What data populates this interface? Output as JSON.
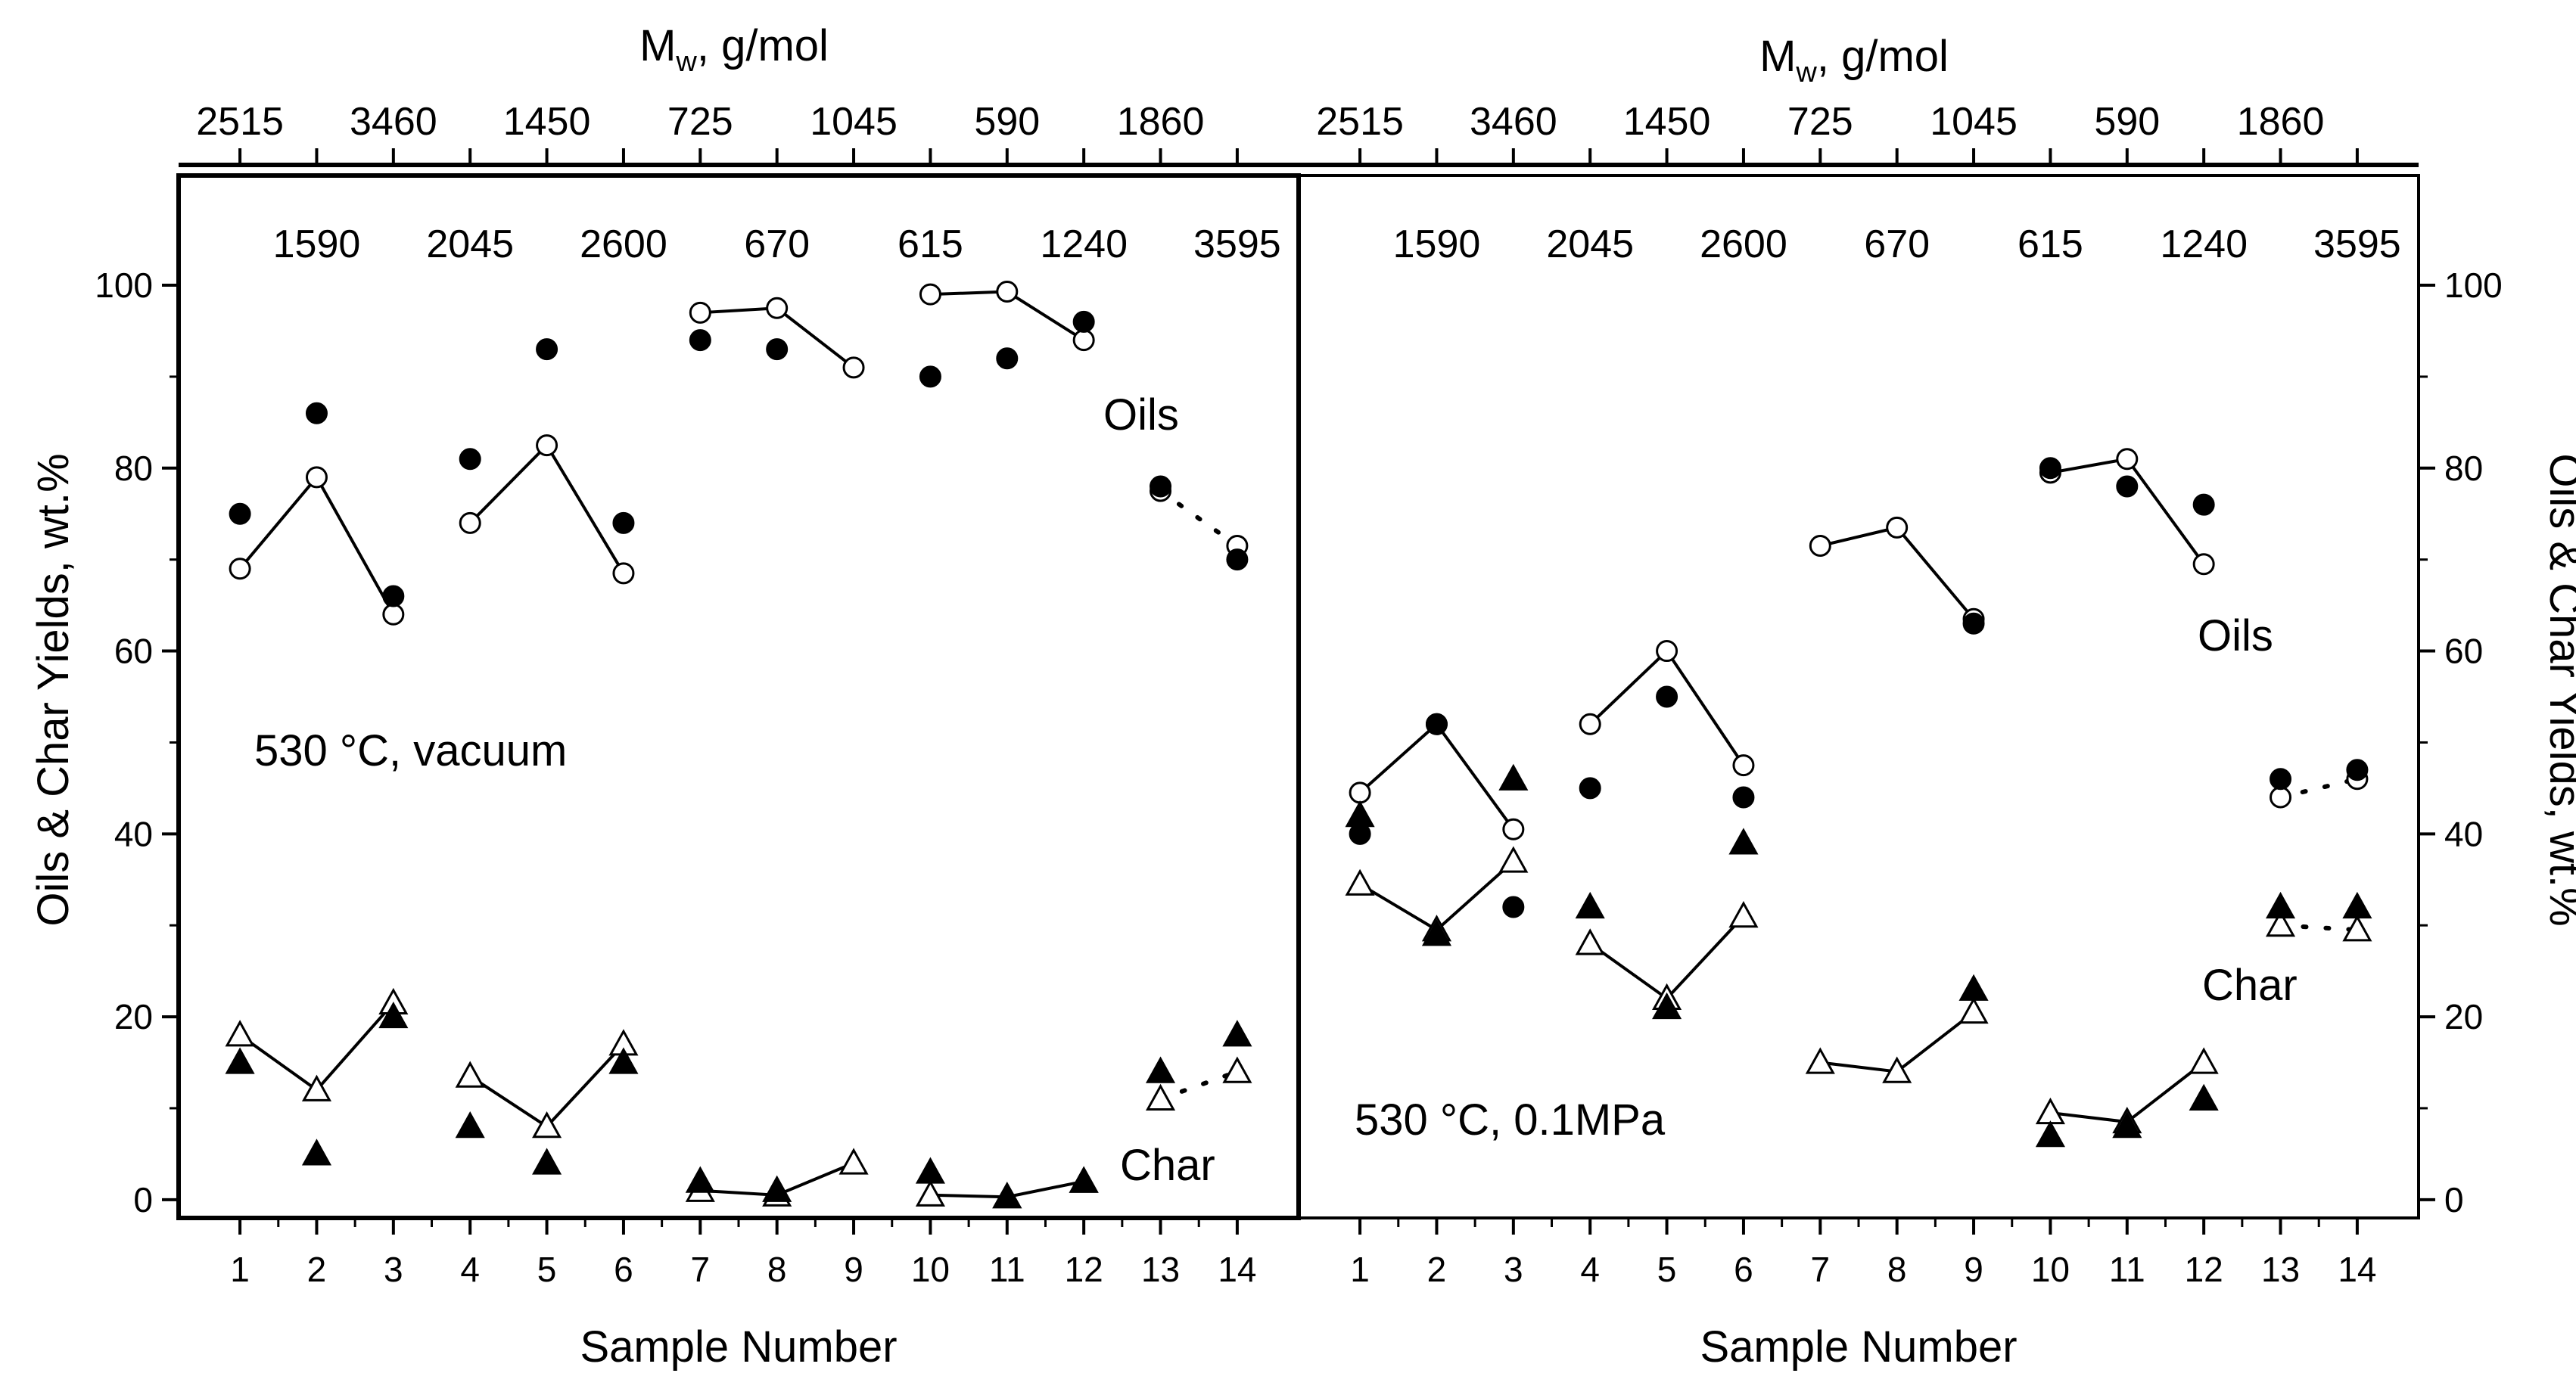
{
  "chart_data": [
    {
      "type": "scatter",
      "panel": "left",
      "condition_label": "530 °C, vacuum",
      "xlabel": "Sample Number",
      "ylabel": "Oils & Char Yields, wt.%",
      "top_axis_title": "M",
      "top_axis_sub": "w",
      "top_axis_unit": ", g/mol",
      "x_ticks": [
        1,
        2,
        3,
        4,
        5,
        6,
        7,
        8,
        9,
        10,
        11,
        12,
        13,
        14
      ],
      "y_ticks": [
        0,
        20,
        40,
        60,
        80,
        100
      ],
      "xlim": [
        0.2,
        14.8
      ],
      "ylim": [
        -2,
        112
      ],
      "mw_upper": [
        "2515",
        "3460",
        "1450",
        "725",
        "1045",
        "590",
        "1860"
      ],
      "mw_lower": [
        "1590",
        "2045",
        "2600",
        "670",
        "615",
        "1240",
        "3595"
      ],
      "annotations": {
        "oils": "Oils",
        "char": "Char"
      },
      "series": [
        {
          "name": "Oils (solid)",
          "marker": "filled-circle",
          "x": [
            1,
            2,
            3,
            4,
            5,
            6,
            7,
            8,
            10,
            11,
            12,
            13,
            14
          ],
          "y": [
            75,
            86,
            66,
            81,
            93,
            74,
            94,
            93,
            90,
            92,
            96,
            78,
            70
          ]
        },
        {
          "name": "Oils (open)",
          "marker": "open-circle",
          "x": [
            1,
            2,
            3,
            4,
            5,
            6,
            7,
            8,
            9,
            10,
            11,
            12,
            13,
            14
          ],
          "y": [
            69,
            79,
            64,
            74,
            82.5,
            68.5,
            97,
            97.5,
            91,
            99,
            99.3,
            94,
            77.5,
            71.5
          ],
          "lines": [
            [
              1,
              2,
              3
            ],
            [
              4,
              5,
              6
            ],
            [
              7,
              8,
              9
            ],
            [
              10,
              11,
              12
            ]
          ],
          "dotted": [
            [
              13,
              14
            ]
          ]
        },
        {
          "name": "Char (solid)",
          "marker": "filled-triangle",
          "x": [
            1,
            2,
            3,
            4,
            5,
            6,
            7,
            8,
            10,
            11,
            12,
            13,
            14
          ],
          "y": [
            15,
            5,
            20,
            8,
            4,
            15,
            2,
            1,
            3,
            0.3,
            2,
            14,
            18
          ]
        },
        {
          "name": "Char (open)",
          "marker": "open-triangle",
          "x": [
            1,
            2,
            3,
            4,
            5,
            6,
            7,
            8,
            9,
            10,
            11,
            12,
            13,
            14
          ],
          "y": [
            18,
            12,
            21.5,
            13.5,
            8,
            17,
            1,
            0.5,
            4,
            0.5,
            0.3,
            2,
            11,
            14
          ],
          "lines": [
            [
              1,
              2,
              3
            ],
            [
              4,
              5,
              6
            ],
            [
              7,
              8,
              9
            ],
            [
              10,
              11,
              12
            ]
          ],
          "dotted": [
            [
              13,
              14
            ]
          ]
        }
      ]
    },
    {
      "type": "scatter",
      "panel": "right",
      "condition_label": "530 °C, 0.1MPa",
      "xlabel": "Sample Number",
      "ylabel": "Oils & Char Yields, wt.%",
      "top_axis_title": "M",
      "top_axis_sub": "w",
      "top_axis_unit": ", g/mol",
      "x_ticks": [
        1,
        2,
        3,
        4,
        5,
        6,
        7,
        8,
        9,
        10,
        11,
        12,
        13,
        14
      ],
      "y_ticks": [
        0,
        20,
        40,
        60,
        80,
        100
      ],
      "xlim": [
        0.2,
        14.8
      ],
      "ylim": [
        -2,
        112
      ],
      "mw_upper": [
        "2515",
        "3460",
        "1450",
        "725",
        "1045",
        "590",
        "1860"
      ],
      "mw_lower": [
        "1590",
        "2045",
        "2600",
        "670",
        "615",
        "1240",
        "3595"
      ],
      "annotations": {
        "oils": "Oils",
        "char": "Char"
      },
      "series": [
        {
          "name": "Oils (solid)",
          "marker": "filled-circle",
          "x": [
            1,
            2,
            3,
            4,
            5,
            6,
            9,
            10,
            11,
            12,
            13,
            14
          ],
          "y": [
            40,
            52,
            32,
            45,
            55,
            44,
            63,
            80,
            78,
            76,
            46,
            47
          ]
        },
        {
          "name": "Oils (open)",
          "marker": "open-circle",
          "x": [
            1,
            2,
            3,
            4,
            5,
            6,
            7,
            8,
            9,
            10,
            11,
            12,
            13,
            14
          ],
          "y": [
            44.5,
            52,
            40.5,
            52,
            60,
            47.5,
            71.5,
            73.5,
            63.5,
            79.5,
            81,
            69.5,
            44,
            46
          ],
          "lines": [
            [
              1,
              2,
              3
            ],
            [
              4,
              5,
              6
            ],
            [
              7,
              8,
              9
            ],
            [
              10,
              11,
              12
            ]
          ],
          "dotted": [
            [
              13,
              14
            ]
          ]
        },
        {
          "name": "Char (solid)",
          "marker": "filled-triangle",
          "x": [
            1,
            2,
            3,
            4,
            5,
            6,
            9,
            10,
            11,
            12,
            13,
            14
          ],
          "y": [
            42,
            29,
            46,
            32,
            21,
            39,
            23,
            7,
            8,
            11,
            32,
            32
          ]
        },
        {
          "name": "Char (open)",
          "marker": "open-triangle",
          "x": [
            1,
            2,
            3,
            4,
            5,
            6,
            7,
            8,
            9,
            10,
            11,
            12,
            13,
            14
          ],
          "y": [
            34.5,
            29.5,
            37,
            28,
            22,
            31,
            15,
            14,
            20.5,
            9.5,
            8.5,
            15,
            30,
            29.5
          ],
          "lines": [
            [
              1,
              2,
              3
            ],
            [
              4,
              5,
              6
            ],
            [
              7,
              8,
              9
            ],
            [
              10,
              11,
              12
            ]
          ],
          "dotted": [
            [
              13,
              14
            ]
          ]
        }
      ]
    }
  ]
}
